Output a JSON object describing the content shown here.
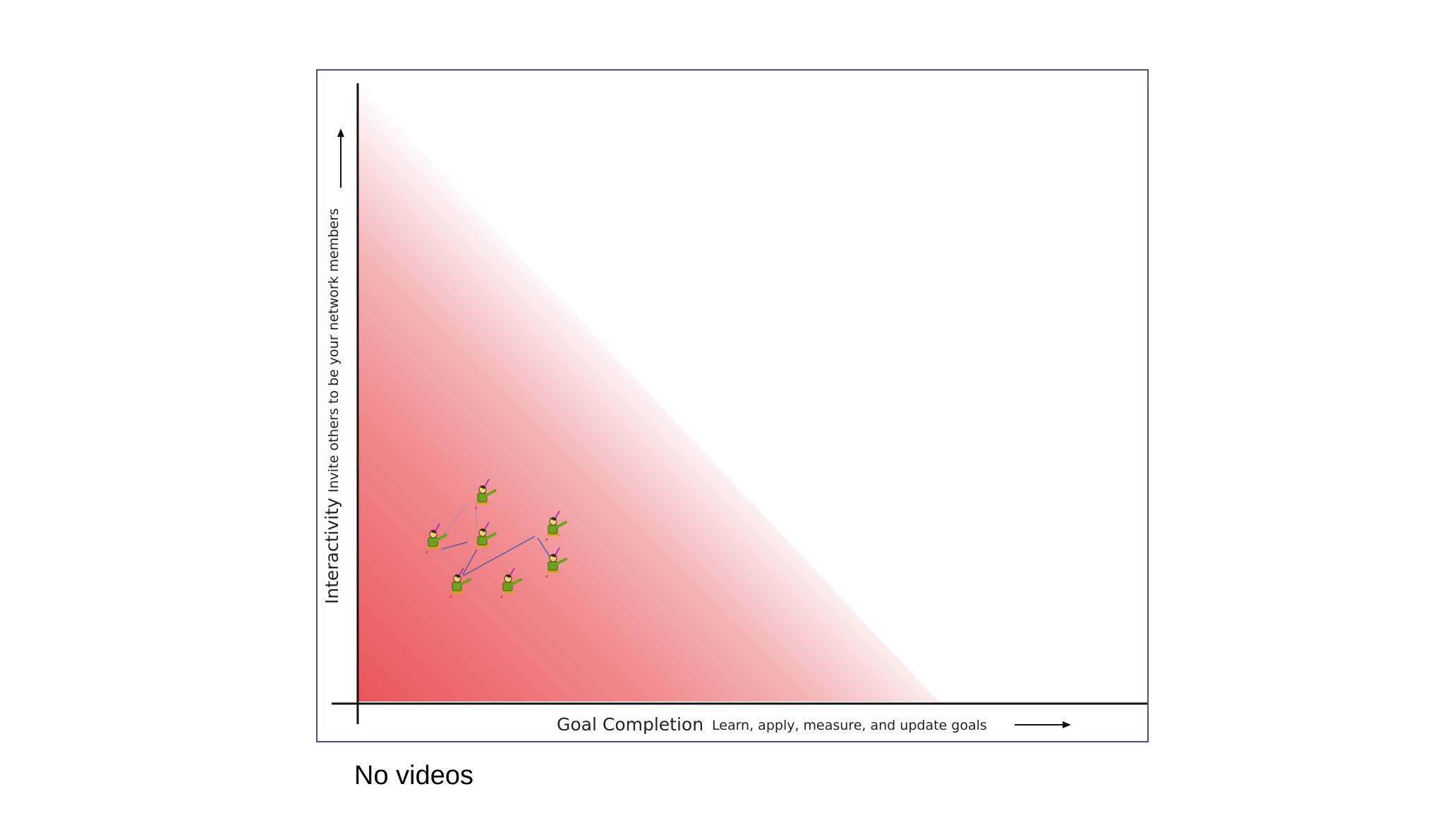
{
  "diagram": {
    "y_axis": {
      "title": "Interactivity",
      "subtitle": "Invite others to be your network members"
    },
    "x_axis": {
      "title": "Goal Completion",
      "subtitle": "Learn, apply, measure, and update goals"
    },
    "gradient": {
      "strong_color": "#e9555a",
      "mid_color": "#f4b3b6",
      "fade_color": "#ffffff"
    },
    "members": {
      "icon": "person-pointing-icon",
      "count": 7,
      "body_color": "#6fa21c",
      "link_color": "#5a5aa8"
    }
  },
  "caption": "No videos"
}
